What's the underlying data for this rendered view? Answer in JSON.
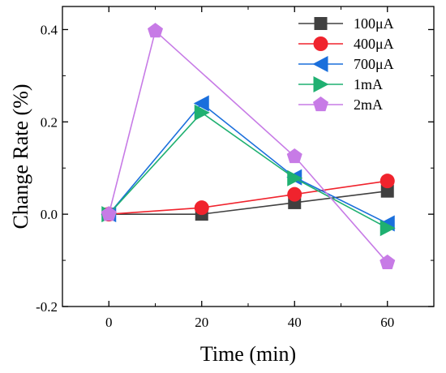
{
  "chart_data": {
    "type": "line",
    "xlabel": "Time (min)",
    "ylabel": "Change Rate (%)",
    "xlim": [
      -10,
      70
    ],
    "ylim": [
      -0.2,
      0.45
    ],
    "x_ticks": [
      0,
      20,
      40,
      60
    ],
    "x_tick_labels": [
      "0",
      "20",
      "40",
      "60"
    ],
    "y_ticks": [
      -0.2,
      0.0,
      0.2,
      0.4
    ],
    "y_tick_labels": [
      "-0.2",
      "0.0",
      "0.2",
      "0.4"
    ],
    "grid": false,
    "legend_position": "top-right",
    "series": [
      {
        "name": "100μA",
        "color": "#404040",
        "marker": "square",
        "x": [
          0,
          20,
          40,
          60
        ],
        "y": [
          0.0,
          0.0,
          0.025,
          0.05
        ]
      },
      {
        "name": "400μA",
        "color": "#f0232d",
        "marker": "circle",
        "x": [
          0,
          20,
          40,
          60
        ],
        "y": [
          0.0,
          0.014,
          0.043,
          0.072
        ]
      },
      {
        "name": "700μA",
        "color": "#1a6fdc",
        "marker": "triangle-left",
        "x": [
          0,
          20,
          40,
          60
        ],
        "y": [
          0.0,
          0.24,
          0.08,
          -0.02
        ]
      },
      {
        "name": "1mA",
        "color": "#1fb071",
        "marker": "triangle-right",
        "x": [
          0,
          20,
          40,
          60
        ],
        "y": [
          0.0,
          0.22,
          0.078,
          -0.03
        ]
      },
      {
        "name": "2mA",
        "color": "#c77be6",
        "marker": "pentagon",
        "x": [
          0,
          10,
          40,
          60
        ],
        "y": [
          0.0,
          0.397,
          0.125,
          -0.105
        ]
      }
    ]
  }
}
